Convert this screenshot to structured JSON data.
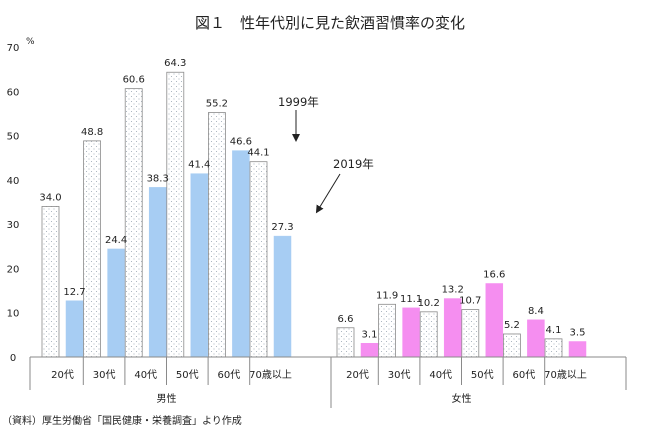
{
  "chart_data": {
    "type": "bar",
    "title": "図１　性年代別に見た飲酒習慣率の変化",
    "unit": "%",
    "ylim": [
      0,
      70
    ],
    "yticks": [
      0,
      10,
      20,
      30,
      40,
      50,
      60,
      70
    ],
    "series": [
      {
        "name": "1999年",
        "color": "#ffffff",
        "pattern": "dotted"
      },
      {
        "name": "2019年",
        "color_male": "#a7cdf3",
        "color_female": "#f58ef0"
      }
    ],
    "groups": [
      {
        "label": "男性",
        "categories": [
          "20代",
          "30代",
          "40代",
          "50代",
          "60代",
          "70歳以上"
        ],
        "values_1999": [
          34.0,
          48.8,
          60.6,
          64.3,
          55.2,
          44.1
        ],
        "values_2019": [
          12.7,
          24.4,
          38.3,
          41.4,
          46.6,
          27.3
        ]
      },
      {
        "label": "女性",
        "categories": [
          "20代",
          "30代",
          "40代",
          "50代",
          "60代",
          "70歳以上"
        ],
        "values_1999": [
          6.6,
          11.9,
          10.2,
          10.7,
          5.2,
          4.1
        ],
        "values_2019": [
          3.1,
          11.1,
          13.2,
          16.6,
          8.4,
          3.5
        ]
      }
    ],
    "annotations": [
      "1999年",
      "2019年"
    ],
    "source": "（資料）厚生労働省「国民健康・栄養調査」より作成",
    "grid": false
  }
}
